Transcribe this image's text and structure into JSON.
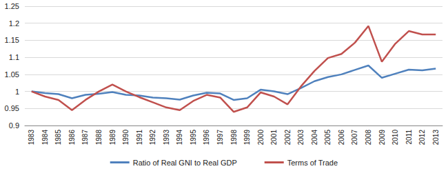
{
  "chart_data": {
    "type": "line",
    "categories": [
      "1983",
      "1984",
      "1985",
      "1986",
      "1987",
      "1988",
      "1989",
      "1990",
      "1991",
      "1992",
      "1993",
      "1994",
      "1995",
      "1996",
      "1997",
      "1998",
      "1999",
      "2000",
      "2001",
      "2002",
      "2003",
      "2004",
      "2005",
      "2006",
      "2007",
      "2008",
      "2009",
      "2010",
      "2011",
      "2012",
      "2013"
    ],
    "series": [
      {
        "name": "Ratio of Real GNI to Real GDP",
        "color": "#4f81bd",
        "values": [
          1.0,
          0.995,
          0.992,
          0.98,
          0.99,
          0.993,
          0.998,
          0.99,
          0.988,
          0.982,
          0.98,
          0.976,
          0.988,
          0.996,
          0.994,
          0.975,
          0.98,
          1.005,
          1.0,
          0.992,
          1.01,
          1.03,
          1.042,
          1.05,
          1.063,
          1.076,
          1.04,
          1.052,
          1.064,
          1.062,
          1.067
        ]
      },
      {
        "name": "Terms of Trade",
        "color": "#c0504d",
        "values": [
          1.0,
          0.985,
          0.975,
          0.945,
          0.975,
          1.0,
          1.02,
          1.0,
          0.983,
          0.968,
          0.953,
          0.945,
          0.972,
          0.99,
          0.982,
          0.94,
          0.953,
          0.997,
          0.985,
          0.962,
          1.015,
          1.06,
          1.098,
          1.11,
          1.143,
          1.192,
          1.087,
          1.14,
          1.177,
          1.167,
          1.167
        ]
      }
    ],
    "ylim": [
      0.9,
      1.25
    ],
    "yticks": [
      0.9,
      0.95,
      1,
      1.05,
      1.1,
      1.15,
      1.2,
      1.25
    ],
    "grid": true,
    "legend": "bottom"
  }
}
